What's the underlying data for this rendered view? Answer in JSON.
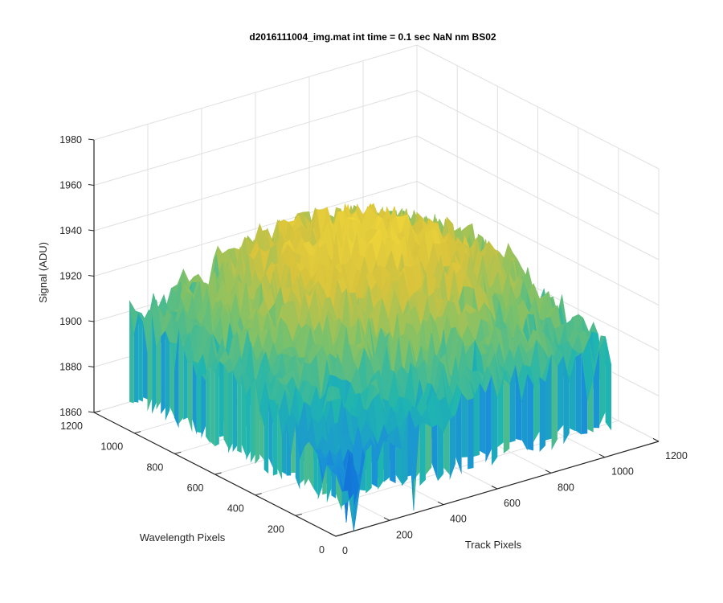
{
  "chart_data": {
    "type": "surface",
    "title": "d2016111004_img.mat int time = 0.1 sec  NaN nm BS02",
    "xlabel": "Track Pixels",
    "ylabel": "Wavelength Pixels",
    "zlabel": "Signal (ADU)",
    "xlim": [
      0,
      1200
    ],
    "ylim": [
      0,
      1200
    ],
    "zlim": [
      1860,
      1980
    ],
    "x_ticks": [
      "0",
      "200",
      "400",
      "600",
      "800",
      "1000",
      "1200"
    ],
    "y_ticks": [
      "0",
      "200",
      "400",
      "600",
      "800",
      "1000",
      "1200"
    ],
    "z_ticks": [
      "1860",
      "1880",
      "1900",
      "1920",
      "1940",
      "1960",
      "1980"
    ],
    "grid": true,
    "colormap": "parula",
    "colors": [
      "#0d5fd8",
      "#1a8fd9",
      "#1fb5b0",
      "#7cc16a",
      "#d8c33c",
      "#f2d83a"
    ],
    "surface_extent": {
      "x_range": [
        0,
        1024
      ],
      "y_range": [
        0,
        1024
      ],
      "z_center": 1908,
      "z_corner_near": 1870,
      "z_peak": 1945,
      "noise_amplitude": 20
    }
  }
}
